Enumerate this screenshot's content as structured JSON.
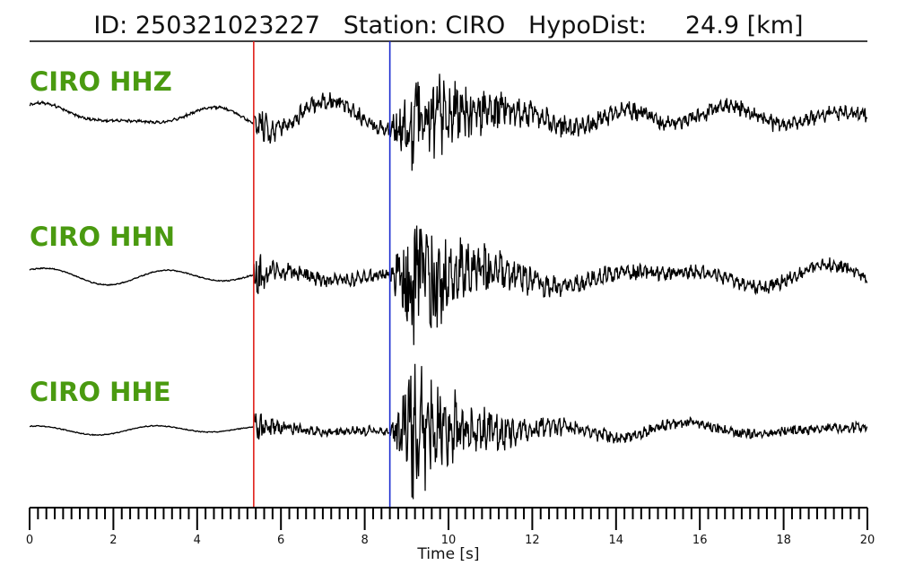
{
  "header": {
    "id_text": "ID: 250321023227",
    "station_text": "Station: CIRO",
    "hypodist_text": "HypoDist:     24.9 [km]"
  },
  "chart_data": {
    "type": "line",
    "title": "ID: 250321023227   Station: CIRO   HypoDist:     24.9 [km]",
    "xlabel": "Time [s]",
    "ylabel": "",
    "xlim": [
      0,
      20
    ],
    "x_major_ticks": [
      0,
      2,
      4,
      6,
      8,
      10,
      12,
      14,
      16,
      18,
      20
    ],
    "x_minor_step": 0.2,
    "tick_labels": [
      "0",
      "2",
      "4",
      "6",
      "8",
      "10",
      "12",
      "14",
      "16",
      "18",
      "20"
    ],
    "grid": false,
    "label_color": "#4a9a10",
    "picks": [
      {
        "phase": "P",
        "time": 5.35,
        "color": "#e0201a"
      },
      {
        "phase": "S",
        "time": 8.6,
        "color": "#1a2ad0"
      }
    ],
    "series": [
      {
        "name": "CIRO HHZ",
        "color": "#000000",
        "noise_level": 0.03,
        "p_amp": 0.55,
        "s_amp": 1.0,
        "peak_time": 9.35,
        "coda_wave": 0.18
      },
      {
        "name": "CIRO HHN",
        "color": "#000000",
        "noise_level": 0.01,
        "p_amp": 0.45,
        "s_amp": 1.0,
        "peak_time": 9.3,
        "coda_wave": 0.1
      },
      {
        "name": "CIRO HHE",
        "color": "#000000",
        "noise_level": 0.008,
        "p_amp": 0.3,
        "s_amp": 1.0,
        "peak_time": 9.3,
        "coda_wave": 0.05
      }
    ]
  }
}
